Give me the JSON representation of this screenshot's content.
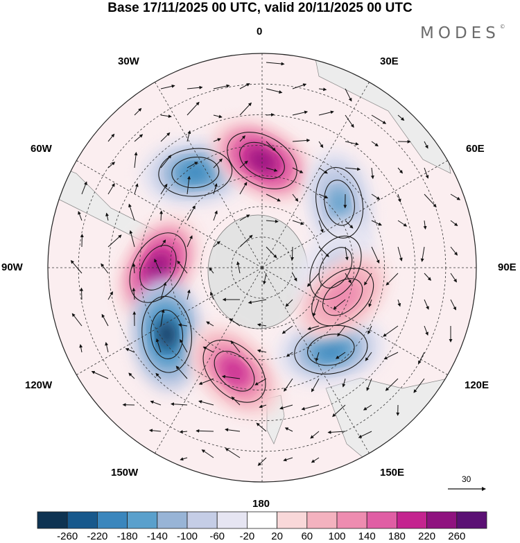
{
  "title": "Base 17/11/2025 00 UTC, valid 20/11/2025 00 UTC",
  "brand": "MODES",
  "brand_mark": "©",
  "longitude_labels": {
    "top": "0",
    "bottom": "180",
    "left": "90W",
    "right": "90E",
    "nw30": "30W",
    "nw60": "60W",
    "ne30": "30E",
    "ne60": "60E",
    "sw120": "120W",
    "sw150": "150W",
    "se120": "120E",
    "se150": "150E"
  },
  "vector_reference": "30",
  "colorbar": {
    "colors": [
      "#0e3352",
      "#17588c",
      "#3a86bd",
      "#5aa0cc",
      "#98b4d6",
      "#c5cde6",
      "#e6e5f2",
      "#ffffff",
      "#f9d8d9",
      "#f4b2bf",
      "#ee8cb0",
      "#e05ea4",
      "#c4248f",
      "#8f127f",
      "#5b1074"
    ],
    "tick_labels": [
      "-260",
      "-220",
      "-180",
      "-140",
      "-100",
      "-60",
      "-20",
      "20",
      "60",
      "100",
      "140",
      "180",
      "220",
      "260"
    ]
  },
  "chart_data": {
    "type": "polar-stereographic-map",
    "hemisphere": "south",
    "field": "geopotential height anomaly with wind vectors",
    "contour_levels": [
      -260,
      -220,
      -180,
      -140,
      -100,
      -60,
      -20,
      20,
      60,
      100,
      140,
      180,
      220,
      260
    ],
    "anomaly_centers": [
      {
        "name": "negative 35W",
        "lon": -35,
        "lat": -52,
        "value": -200
      },
      {
        "name": "positive 0",
        "lon": 0,
        "lat": -55,
        "value": 240
      },
      {
        "name": "negative 50E",
        "lon": 50,
        "lat": -57,
        "value": -150
      },
      {
        "name": "negative 90E",
        "lon": 90,
        "lat": -66,
        "value": -90
      },
      {
        "name": "positive 90W",
        "lon": -90,
        "lat": -56,
        "value": 240
      },
      {
        "name": "negative 125W",
        "lon": -125,
        "lat": -52,
        "value": -260
      },
      {
        "name": "positive 165W",
        "lon": -165,
        "lat": -55,
        "value": 210
      },
      {
        "name": "negative 140E",
        "lon": 140,
        "lat": -55,
        "value": -200
      },
      {
        "name": "positive 110E",
        "lon": 110,
        "lat": -62,
        "value": 140
      }
    ]
  }
}
